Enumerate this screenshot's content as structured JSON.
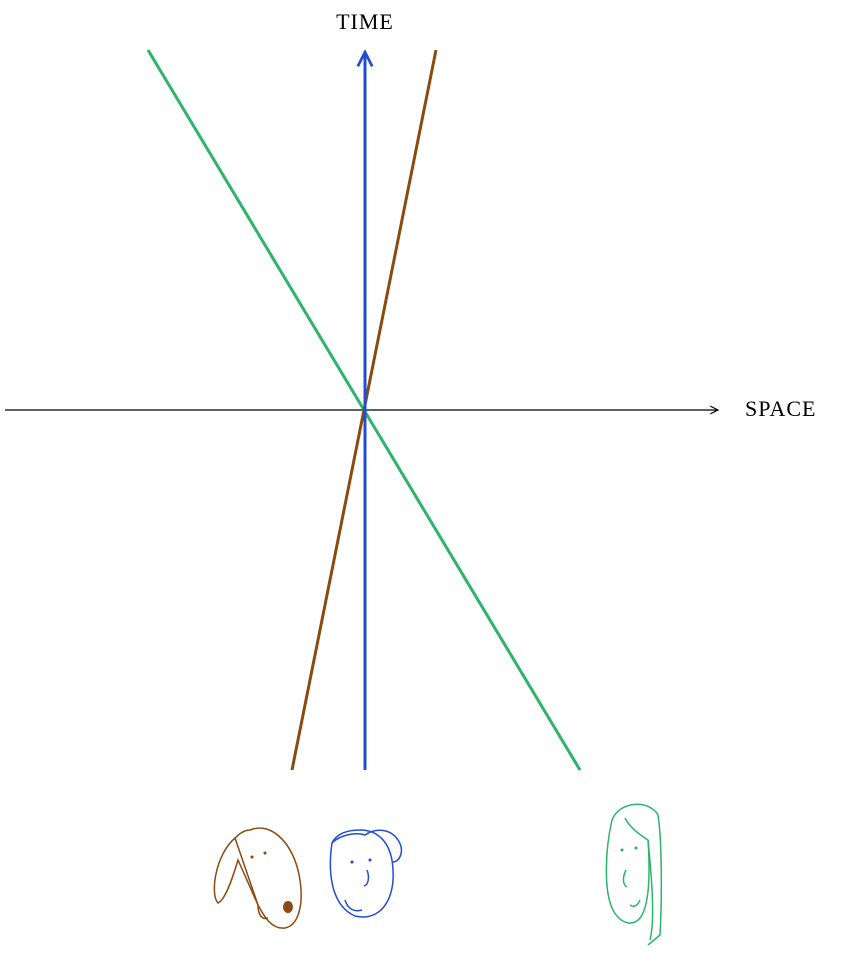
{
  "axes": {
    "vertical": {
      "label": "TIME"
    },
    "horizontal": {
      "label": "SPACE"
    }
  }
}
